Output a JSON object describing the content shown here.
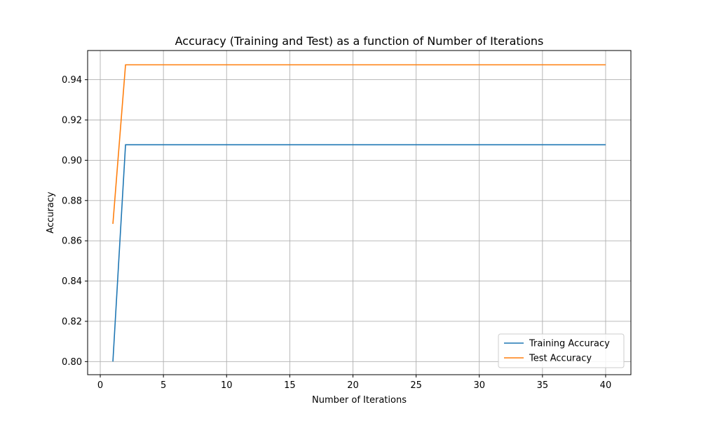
{
  "chart_data": {
    "type": "line",
    "title": "Accuracy (Training and Test) as a function of Number of Iterations",
    "xlabel": "Number of Iterations",
    "ylabel": "Accuracy",
    "xlim": [
      -1,
      42
    ],
    "ylim": [
      0.7935,
      0.9545
    ],
    "xticks": [
      0,
      5,
      10,
      15,
      20,
      25,
      30,
      35,
      40
    ],
    "yticks": [
      0.8,
      0.82,
      0.84,
      0.86,
      0.88,
      0.9,
      0.92,
      0.94
    ],
    "ytick_labels": [
      "0.80",
      "0.82",
      "0.84",
      "0.86",
      "0.88",
      "0.90",
      "0.92",
      "0.94"
    ],
    "grid": true,
    "legend_position": "lower-right",
    "series": [
      {
        "name": "Training Accuracy",
        "color": "#1f77b4",
        "x": [
          1,
          2,
          40
        ],
        "y": [
          0.8,
          0.9077,
          0.9077
        ]
      },
      {
        "name": "Test Accuracy",
        "color": "#ff7f0e",
        "x": [
          1,
          2,
          40
        ],
        "y": [
          0.8684,
          0.9474,
          0.9474
        ]
      }
    ]
  }
}
